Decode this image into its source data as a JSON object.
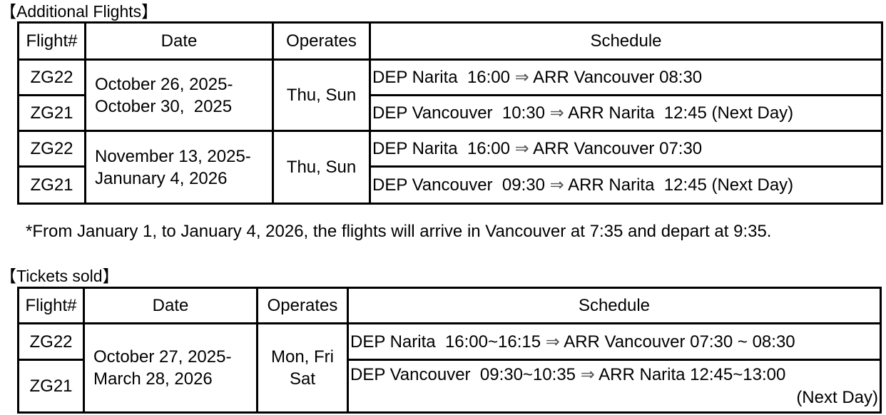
{
  "additional": {
    "title": "【Additional Flights】",
    "headers": [
      "Flight#",
      "Date",
      "Operates",
      "Schedule"
    ],
    "groups": [
      {
        "date": "October 26, 2025-\nOctober 30,  2025",
        "operates": "Thu, Sun",
        "rows": [
          {
            "flight": "ZG22",
            "dep": "DEP Narita  16:00 ",
            "arrow": "⇒",
            "arr": " ARR Vancouver 08:30"
          },
          {
            "flight": "ZG21",
            "dep": "DEP Vancouver  10:30 ",
            "arrow": "⇒",
            "arr": " ARR Narita  12:45 (Next Day)"
          }
        ]
      },
      {
        "date": "November 13, 2025-\nJanunary 4, 2026",
        "operates": "Thu, Sun",
        "rows": [
          {
            "flight": "ZG22",
            "dep": "DEP Narita  16:00 ",
            "arrow": "⇒",
            "arr": " ARR Vancouver 07:30"
          },
          {
            "flight": "ZG21",
            "dep": "DEP Vancouver  09:30 ",
            "arrow": "⇒",
            "arr": " ARR Narita  12:45 (Next Day)"
          }
        ]
      }
    ],
    "note": "*From January 1, to January 4, 2026, the flights will arrive in Vancouver at 7:35 and depart at 9:35."
  },
  "sold": {
    "title": "【Tickets sold】",
    "headers": [
      "Flight#",
      "Date",
      "Operates",
      "Schedule"
    ],
    "date": "October 27, 2025-\nMarch 28, 2026",
    "operates": "Mon, Fri\nSat",
    "rows": [
      {
        "flight": "ZG22",
        "dep": "DEP Narita  16:00~16:15 ",
        "arrow": "⇒",
        "arr": " ARR Vancouver 07:30 ~ 08:30",
        "extra": ""
      },
      {
        "flight": "ZG21",
        "dep": "DEP Vancouver  09:30~10:35 ",
        "arrow": "⇒",
        "arr": " ARR Narita 12:45~13:00",
        "extra": "(Next Day)"
      }
    ]
  }
}
